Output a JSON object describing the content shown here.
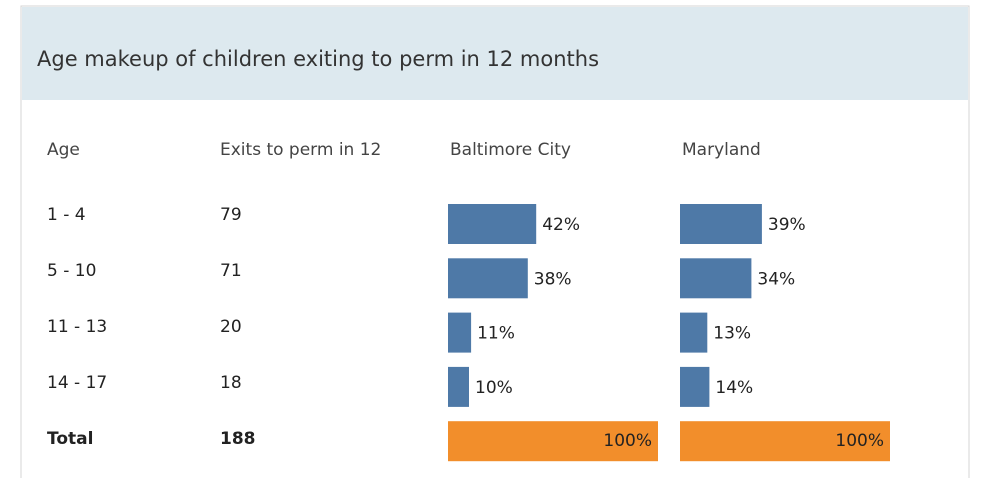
{
  "title": "Age makeup of children exiting to perm in 12 months",
  "table": {
    "columns": [
      "Age",
      "Exits to perm in 12",
      "Baltimore City",
      "Maryland"
    ],
    "rows": [
      {
        "age": "1 - 4",
        "exits": 79,
        "baltimore": 42,
        "baltimore_label": "42%",
        "maryland": 39,
        "maryland_label": "39%"
      },
      {
        "age": "5 - 10",
        "exits": 71,
        "baltimore": 38,
        "baltimore_label": "38%",
        "maryland": 34,
        "maryland_label": "34%"
      },
      {
        "age": "11 - 13",
        "exits": 20,
        "baltimore": 11,
        "baltimore_label": "11%",
        "maryland": 13,
        "maryland_label": "13%"
      },
      {
        "age": "14 - 17",
        "exits": 18,
        "baltimore": 10,
        "baltimore_label": "10%",
        "maryland": 14,
        "maryland_label": "14%"
      }
    ],
    "total": {
      "age": "Total",
      "exits": 188,
      "baltimore": 100,
      "baltimore_label": "100%",
      "maryland": 100,
      "maryland_label": "100%"
    }
  },
  "colors": {
    "bar": "#4e79a7",
    "total": "#f28e2b"
  }
}
